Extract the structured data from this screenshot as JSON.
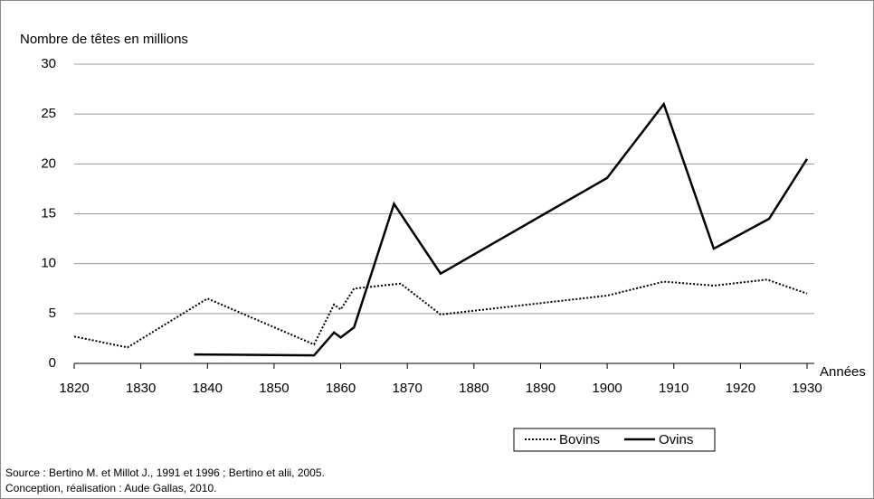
{
  "chart_data": {
    "type": "line",
    "y_axis_label": "Nombre de têtes en millions",
    "x_axis_label": "Années",
    "source": "Source : Bertino M. et Millot J., 1991 et 1996 ; Bertino et alii, 2005.",
    "credits": "Conception, réalisation : Aude Gallas, 2010.",
    "xlim": [
      1820,
      1930
    ],
    "xticks": [
      1820,
      1830,
      1840,
      1850,
      1860,
      1870,
      1880,
      1890,
      1900,
      1910,
      1920,
      1930
    ],
    "ylim": [
      0,
      30
    ],
    "yticks": [
      0,
      5,
      10,
      15,
      20,
      25,
      30
    ],
    "grid": true,
    "series": [
      {
        "name": "Bovins",
        "color": "#000000",
        "dash": "dotted",
        "x": [
          1820,
          1828,
          1840,
          1856,
          1859,
          1860,
          1862,
          1869,
          1875,
          1900,
          1908.5,
          1916,
          1924,
          1930
        ],
        "values": [
          2.7,
          1.6,
          6.5,
          1.9,
          5.9,
          5.4,
          7.5,
          8.0,
          4.9,
          6.8,
          8.2,
          7.8,
          8.4,
          7.0
        ]
      },
      {
        "name": "Ovins",
        "color": "#000000",
        "dash": "solid",
        "x": [
          1838,
          1856,
          1859,
          1860,
          1862,
          1868,
          1875,
          1900,
          1908.5,
          1916,
          1924.3,
          1930
        ],
        "values": [
          0.9,
          0.8,
          3.1,
          2.6,
          3.6,
          16.0,
          9.0,
          18.6,
          26.0,
          11.5,
          14.5,
          20.5
        ]
      }
    ]
  }
}
